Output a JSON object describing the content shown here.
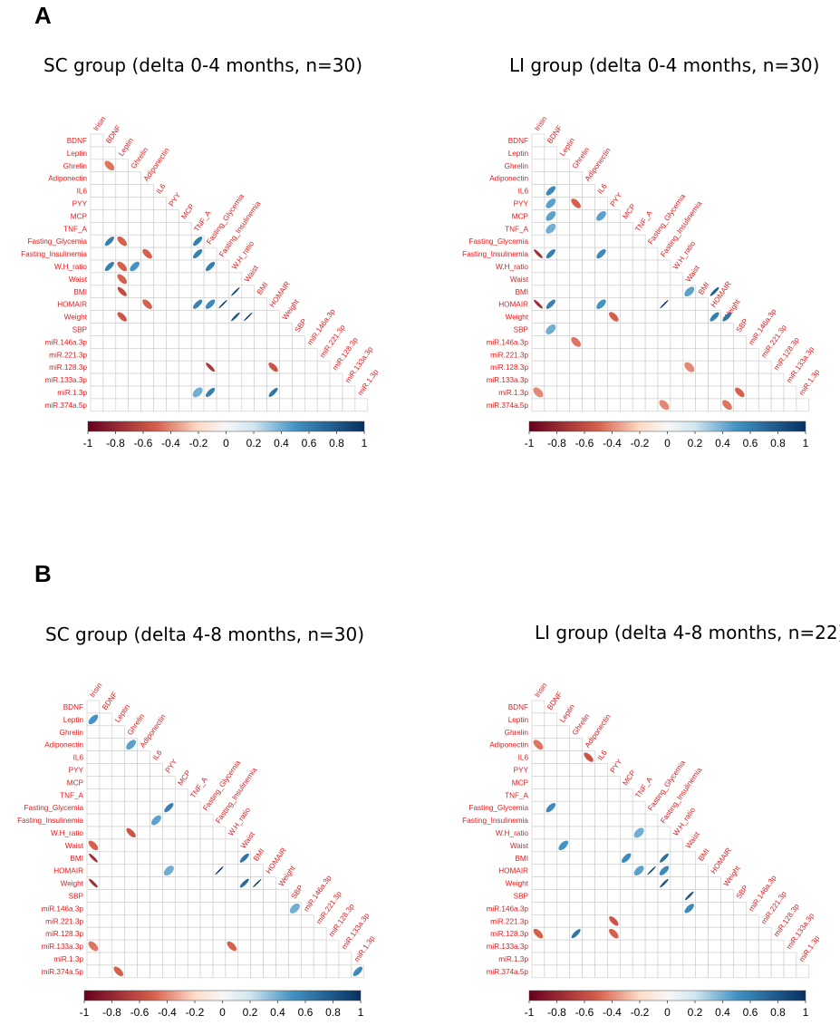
{
  "panels": [
    {
      "label": "A"
    },
    {
      "label": "B"
    }
  ],
  "colors": {
    "neg_strong": "#67001f",
    "neg_mid": "#d6604d",
    "neg_light": "#fddbc7",
    "zero": "#f7f7f7",
    "pos_light": "#d1e5f0",
    "pos_mid": "#4393c3",
    "pos_strong": "#053061",
    "label_text": "#e41a1c",
    "grid": "#c8c8c8"
  },
  "chart_data": [
    {
      "type": "heatmap",
      "title": "SC group (delta 0-4 months, n=30)",
      "variables": [
        "Irisin",
        "BDNF",
        "Leptin",
        "Ghrelin",
        "Adiponectin",
        "IL6",
        "PYY",
        "MCP",
        "TNF_A",
        "Fasting_Glycemia",
        "Fasting_Insulinemia",
        "W.H_ratio",
        "Waist",
        "BMI",
        "HOMAIR",
        "Weight",
        "SBP",
        "miR.146a.3p",
        "miR.221.3p",
        "miR.128.3p",
        "miR.133a.3p",
        "miR.1.3p",
        "miR.374a.5p"
      ],
      "colorbar_ticks": [
        "-1",
        "-0.8",
        "-0.6",
        "-0.4",
        "-0.2",
        "0",
        "0.2",
        "0.4",
        "0.6",
        "0.8",
        "1"
      ],
      "value_range": [
        -1,
        1
      ],
      "correlations": [
        {
          "row": "Ghrelin",
          "col": "BDNF",
          "r": -0.45
        },
        {
          "row": "Fasting_Glycemia",
          "col": "BDNF",
          "r": 0.6
        },
        {
          "row": "Fasting_Glycemia",
          "col": "Leptin",
          "r": -0.5
        },
        {
          "row": "Fasting_Glycemia",
          "col": "TNF_A",
          "r": 0.6
        },
        {
          "row": "Fasting_Insulinemia",
          "col": "Adiponectin",
          "r": -0.5
        },
        {
          "row": "Fasting_Insulinemia",
          "col": "TNF_A",
          "r": 0.6
        },
        {
          "row": "W.H_ratio",
          "col": "BDNF",
          "r": 0.6
        },
        {
          "row": "W.H_ratio",
          "col": "Leptin",
          "r": -0.5
        },
        {
          "row": "W.H_ratio",
          "col": "Ghrelin",
          "r": 0.5
        },
        {
          "row": "W.H_ratio",
          "col": "Fasting_Glycemia",
          "r": 0.6
        },
        {
          "row": "Waist",
          "col": "Leptin",
          "r": -0.5
        },
        {
          "row": "BMI",
          "col": "Leptin",
          "r": -0.6
        },
        {
          "row": "BMI",
          "col": "W.H_ratio",
          "r": 0.85
        },
        {
          "row": "HOMAIR",
          "col": "Adiponectin",
          "r": -0.5
        },
        {
          "row": "HOMAIR",
          "col": "TNF_A",
          "r": 0.6
        },
        {
          "row": "HOMAIR",
          "col": "Fasting_Glycemia",
          "r": 0.55
        },
        {
          "row": "HOMAIR",
          "col": "Fasting_Insulinemia",
          "r": 0.97
        },
        {
          "row": "Weight",
          "col": "Leptin",
          "r": -0.55
        },
        {
          "row": "Weight",
          "col": "W.H_ratio",
          "r": 0.8
        },
        {
          "row": "Weight",
          "col": "Waist",
          "r": 0.97
        },
        {
          "row": "miR.128.3p",
          "col": "Fasting_Glycemia",
          "r": -0.7
        },
        {
          "row": "miR.128.3p",
          "col": "HOMAIR",
          "r": -0.55
        },
        {
          "row": "miR.1.3p",
          "col": "TNF_A",
          "r": 0.4
        },
        {
          "row": "miR.1.3p",
          "col": "Fasting_Glycemia",
          "r": 0.6
        },
        {
          "row": "miR.1.3p",
          "col": "HOMAIR",
          "r": 0.65
        }
      ]
    },
    {
      "type": "heatmap",
      "title": "LI group (delta 0-4 months, n=30)",
      "variables": [
        "Irisin",
        "BDNF",
        "Leptin",
        "Ghrelin",
        "Adiponectin",
        "IL6",
        "PYY",
        "MCP",
        "TNF_A",
        "Fasting_Glycemia",
        "Fasting_Insulinemia",
        "W.H_ratio",
        "Waist",
        "BMI",
        "HOMAIR",
        "Weight",
        "SBP",
        "miR.146a.3p",
        "miR.221.3p",
        "miR.128.3p",
        "miR.133a.3p",
        "miR.1.3p",
        "miR.374a.5p"
      ],
      "colorbar_ticks": [
        "-1",
        "-0.8",
        "-0.6",
        "-0.4",
        "-0.2",
        "0",
        "0.2",
        "0.4",
        "0.6",
        "0.8",
        "1"
      ],
      "value_range": [
        -1,
        1
      ],
      "correlations": [
        {
          "row": "IL6",
          "col": "BDNF",
          "r": 0.55
        },
        {
          "row": "PYY",
          "col": "BDNF",
          "r": 0.45
        },
        {
          "row": "PYY",
          "col": "Ghrelin",
          "r": -0.5
        },
        {
          "row": "MCP",
          "col": "BDNF",
          "r": 0.45
        },
        {
          "row": "MCP",
          "col": "IL6",
          "r": 0.45
        },
        {
          "row": "TNF_A",
          "col": "BDNF",
          "r": 0.4
        },
        {
          "row": "Fasting_Insulinemia",
          "col": "Irisin",
          "r": -0.75
        },
        {
          "row": "Fasting_Insulinemia",
          "col": "BDNF",
          "r": 0.6
        },
        {
          "row": "Fasting_Insulinemia",
          "col": "IL6",
          "r": 0.55
        },
        {
          "row": "BMI",
          "col": "Waist",
          "r": 0.45
        },
        {
          "row": "BMI",
          "col": "HOMAIR",
          "r": 0.75
        },
        {
          "row": "HOMAIR",
          "col": "Irisin",
          "r": -0.75
        },
        {
          "row": "HOMAIR",
          "col": "BDNF",
          "r": 0.6
        },
        {
          "row": "HOMAIR",
          "col": "IL6",
          "r": 0.5
        },
        {
          "row": "HOMAIR",
          "col": "Fasting_Insulinemia",
          "r": 0.97
        },
        {
          "row": "Weight",
          "col": "PYY",
          "r": -0.5
        },
        {
          "row": "Weight",
          "col": "HOMAIR",
          "r": 0.6
        },
        {
          "row": "Weight",
          "col": "Weight",
          "r": 0.65
        },
        {
          "row": "SBP",
          "col": "BDNF",
          "r": 0.4
        },
        {
          "row": "miR.146a.3p",
          "col": "Ghrelin",
          "r": -0.45
        },
        {
          "row": "miR.128.3p",
          "col": "Waist",
          "r": -0.4
        },
        {
          "row": "miR.1.3p",
          "col": "Irisin",
          "r": -0.4
        },
        {
          "row": "miR.1.3p",
          "col": "SBP",
          "r": -0.5
        },
        {
          "row": "miR.374a.5p",
          "col": "Fasting_Insulinemia",
          "r": -0.4
        },
        {
          "row": "miR.374a.5p",
          "col": "Weight",
          "r": -0.45
        }
      ]
    },
    {
      "type": "heatmap",
      "title": "SC group (delta 4-8 months, n=30)",
      "variables": [
        "Irisin",
        "BDNF",
        "Leptin",
        "Ghrelin",
        "Adiponectin",
        "IL6",
        "PYY",
        "MCP",
        "TNF_A",
        "Fasting_Glycemia",
        "Fasting_Insulinemia",
        "W.H_ratio",
        "Waist",
        "BMI",
        "HOMAIR",
        "Weight",
        "SBP",
        "miR.146a.3p",
        "miR.221.3p",
        "miR.128.3p",
        "miR.133a.3p",
        "miR.1.3p",
        "miR.374a.5p"
      ],
      "colorbar_ticks": [
        "-1",
        "-0.8",
        "-0.6",
        "-0.4",
        "-0.2",
        "0",
        "0.2",
        "0.4",
        "0.6",
        "0.8",
        "1"
      ],
      "value_range": [
        -1,
        1
      ],
      "correlations": [
        {
          "row": "Leptin",
          "col": "Irisin",
          "r": 0.5
        },
        {
          "row": "Adiponectin",
          "col": "Ghrelin",
          "r": 0.45
        },
        {
          "row": "Fasting_Glycemia",
          "col": "PYY",
          "r": 0.6
        },
        {
          "row": "Fasting_Insulinemia",
          "col": "IL6",
          "r": 0.45
        },
        {
          "row": "W.H_ratio",
          "col": "Ghrelin",
          "r": -0.55
        },
        {
          "row": "Waist",
          "col": "Irisin",
          "r": -0.5
        },
        {
          "row": "BMI",
          "col": "Irisin",
          "r": -0.75
        },
        {
          "row": "BMI",
          "col": "Waist",
          "r": 0.65
        },
        {
          "row": "HOMAIR",
          "col": "PYY",
          "r": 0.4
        },
        {
          "row": "HOMAIR",
          "col": "Fasting_Insulinemia",
          "r": 0.97
        },
        {
          "row": "Weight",
          "col": "Irisin",
          "r": -0.75
        },
        {
          "row": "Weight",
          "col": "Waist",
          "r": 0.7
        },
        {
          "row": "Weight",
          "col": "BMI",
          "r": 0.97
        },
        {
          "row": "miR.146a.3p",
          "col": "SBP",
          "r": 0.4
        },
        {
          "row": "miR.133a.3p",
          "col": "Irisin",
          "r": -0.45
        },
        {
          "row": "miR.133a.3p",
          "col": "W.H_ratio",
          "r": -0.5
        },
        {
          "row": "miR.374a.5p",
          "col": "Leptin",
          "r": -0.5
        },
        {
          "row": "miR.374a.5p",
          "col": "miR.1.3p",
          "r": 0.55
        }
      ]
    },
    {
      "type": "heatmap",
      "title": "LI group (delta 4-8 months, n=22)",
      "variables": [
        "Irisin",
        "BDNF",
        "Leptin",
        "Ghrelin",
        "Adiponectin",
        "IL6",
        "PYY",
        "MCP",
        "TNF_A",
        "Fasting_Glycemia",
        "Fasting_Insulinemia",
        "W.H_ratio",
        "Waist",
        "BMI",
        "HOMAIR",
        "Weight",
        "SBP",
        "miR.146a.3p",
        "miR.221.3p",
        "miR.128.3p",
        "miR.133a.3p",
        "miR.1.3p",
        "miR.374a.5p"
      ],
      "colorbar_ticks": [
        "-1",
        "-0.8",
        "-0.6",
        "-0.4",
        "-0.2",
        "0",
        "0.2",
        "0.4",
        "0.6",
        "0.8",
        "1"
      ],
      "value_range": [
        -1,
        1
      ],
      "correlations": [
        {
          "row": "Adiponectin",
          "col": "Irisin",
          "r": -0.45
        },
        {
          "row": "IL6",
          "col": "Adiponectin",
          "r": -0.55
        },
        {
          "row": "Fasting_Glycemia",
          "col": "BDNF",
          "r": 0.55
        },
        {
          "row": "W.H_ratio",
          "col": "TNF_A",
          "r": 0.4
        },
        {
          "row": "Waist",
          "col": "Leptin",
          "r": 0.5
        },
        {
          "row": "BMI",
          "col": "MCP",
          "r": 0.55
        },
        {
          "row": "BMI",
          "col": "Fasting_Insulinemia",
          "r": 0.7
        },
        {
          "row": "HOMAIR",
          "col": "TNF_A",
          "r": 0.45
        },
        {
          "row": "HOMAIR",
          "col": "Fasting_Glycemia",
          "r": 0.97
        },
        {
          "row": "HOMAIR",
          "col": "Fasting_Insulinemia",
          "r": 0.55
        },
        {
          "row": "Weight",
          "col": "Fasting_Insulinemia",
          "r": 0.8
        },
        {
          "row": "SBP",
          "col": "Waist",
          "r": 0.8
        },
        {
          "row": "miR.146a.3p",
          "col": "Waist",
          "r": 0.55
        },
        {
          "row": "miR.221.3p",
          "col": "PYY",
          "r": -0.55
        },
        {
          "row": "miR.128.3p",
          "col": "Irisin",
          "r": -0.5
        },
        {
          "row": "miR.128.3p",
          "col": "Ghrelin",
          "r": 0.65
        },
        {
          "row": "miR.128.3p",
          "col": "PYY",
          "r": -0.5
        }
      ]
    }
  ]
}
